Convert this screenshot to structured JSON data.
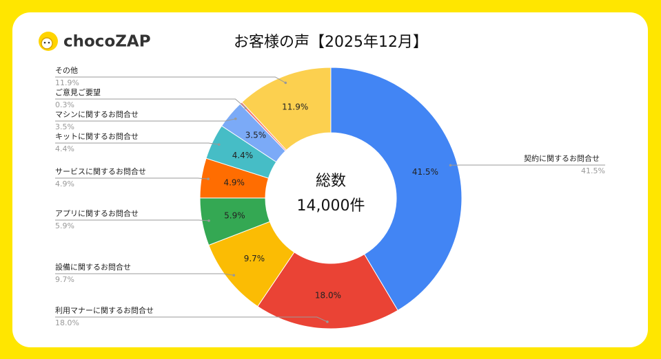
{
  "logo": "chocoZAP",
  "chart_data": {
    "type": "donut",
    "title": "お客様の声【2025年12月】",
    "center_text": [
      "総数",
      "14,000件"
    ],
    "categories": [
      "契約に関するお問合せ",
      "利用マナーに関するお問合せ",
      "設備に関するお問合せ",
      "アプリに関するお問合せ",
      "サービスに関するお問合せ",
      "キットに関するお問合せ",
      "マシンに関するお問合せ",
      "ご意見ご要望",
      "その他"
    ],
    "values": [
      41.5,
      18.0,
      9.7,
      5.9,
      4.9,
      4.4,
      3.5,
      0.3,
      11.9
    ],
    "value_labels": [
      "41.5%",
      "18.0%",
      "9.7%",
      "5.9%",
      "4.9%",
      "4.4%",
      "3.5%",
      "0.3%",
      "11.9%"
    ],
    "colors": [
      "#4285f4",
      "#ea4335",
      "#fbbc04",
      "#34a853",
      "#ff6d01",
      "#46bdc6",
      "#7baaf7",
      "#f07b72",
      "#fcd04f"
    ]
  }
}
